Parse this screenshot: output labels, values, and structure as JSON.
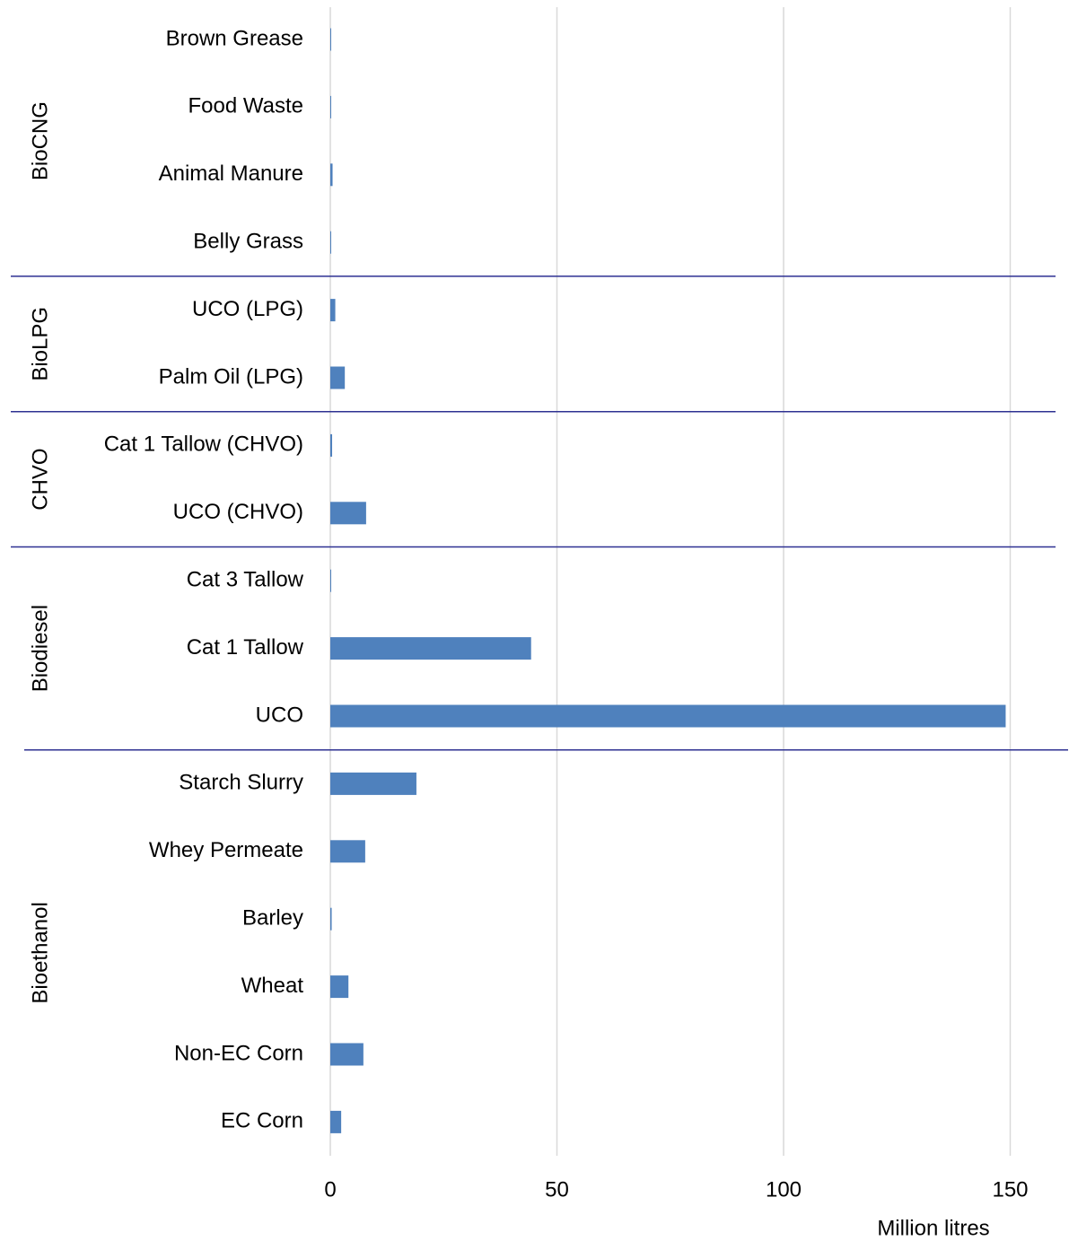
{
  "chart_data": {
    "type": "bar",
    "orientation": "horizontal",
    "color": "#4f81bd",
    "grid": true,
    "xlabel": "Million litres",
    "xlim": [
      0,
      160
    ],
    "xticks": [
      0,
      50,
      100,
      150
    ],
    "groups": [
      {
        "name": "BioCNG",
        "categories": [
          "Brown Grease",
          "Food Waste",
          "Animal Manure",
          "Belly Grass"
        ],
        "values": [
          0.1,
          0.1,
          0.5,
          0.1
        ]
      },
      {
        "name": "BioLPG",
        "categories": [
          "UCO (LPG)",
          "Palm Oil (LPG)"
        ],
        "values": [
          1.1,
          3.2
        ]
      },
      {
        "name": "CHVO",
        "categories": [
          "Cat 1 Tallow (CHVO)",
          "UCO (CHVO)"
        ],
        "values": [
          0.4,
          7.9
        ]
      },
      {
        "name": "Biodiesel",
        "categories": [
          "Cat 3 Tallow",
          "Cat 1 Tallow",
          "UCO"
        ],
        "values": [
          0.1,
          44.3,
          149
        ]
      },
      {
        "name": "Bioethanol",
        "categories": [
          "Starch Slurry",
          "Whey Permeate",
          "Barley",
          "Wheat",
          "Non-EC Corn",
          "EC Corn"
        ],
        "values": [
          19,
          7.7,
          0.3,
          4,
          7.3,
          2.4
        ]
      }
    ]
  }
}
